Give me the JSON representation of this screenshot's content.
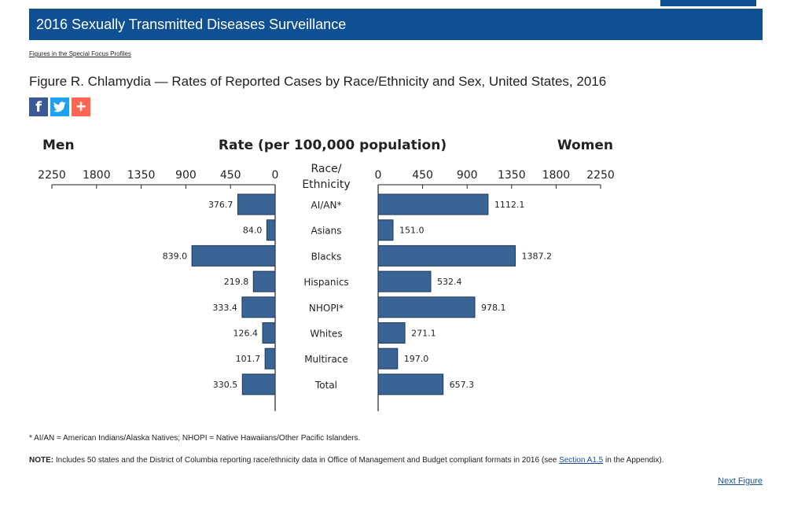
{
  "banner": {
    "title": "2016 Sexually Transmitted Diseases Surveillance"
  },
  "breadcrumb": {
    "label": "Figures in the Special Focus Profiles"
  },
  "figure": {
    "title": "Figure R. Chlamydia — Rates of Reported Cases by Race/Ethnicity and Sex, United States, 2016"
  },
  "share": {
    "facebook": "f",
    "plus": "+"
  },
  "chart_data": {
    "type": "bar",
    "orientation": "horizontal-butterfly",
    "title": "Rate (per 100,000 population)",
    "left_label": "Men",
    "right_label": "Women",
    "category_label": [
      "Race/",
      "Ethnicity"
    ],
    "categories": [
      "AI/AN*",
      "Asians",
      "Blacks",
      "Hispanics",
      "NHOPI*",
      "Whites",
      "Multirace",
      "Total"
    ],
    "series": [
      {
        "name": "Men",
        "values": [
          376.7,
          84.0,
          839.0,
          219.8,
          333.4,
          126.4,
          101.7,
          330.5
        ]
      },
      {
        "name": "Women",
        "values": [
          1112.1,
          151.0,
          1387.2,
          532.4,
          978.1,
          271.1,
          197.0,
          657.3
        ]
      }
    ],
    "xlim": [
      0,
      2250
    ],
    "ticks": [
      0,
      450,
      900,
      1350,
      1800,
      2250
    ],
    "bar_color": "#3a6496"
  },
  "footnote": "* AI/AN = American Indians/Alaska Natives; NHOPI = Native Hawaiians/Other Pacific Islanders.",
  "note": {
    "label": "NOTE:",
    "text_before": " Includes 50 states and the District of Columbia reporting race/ethnicity data in Office of Management and Budget compliant formats in 2016 (see ",
    "link": "Section A1.5",
    "text_after": " in the Appendix)."
  },
  "next": "Next Figure"
}
